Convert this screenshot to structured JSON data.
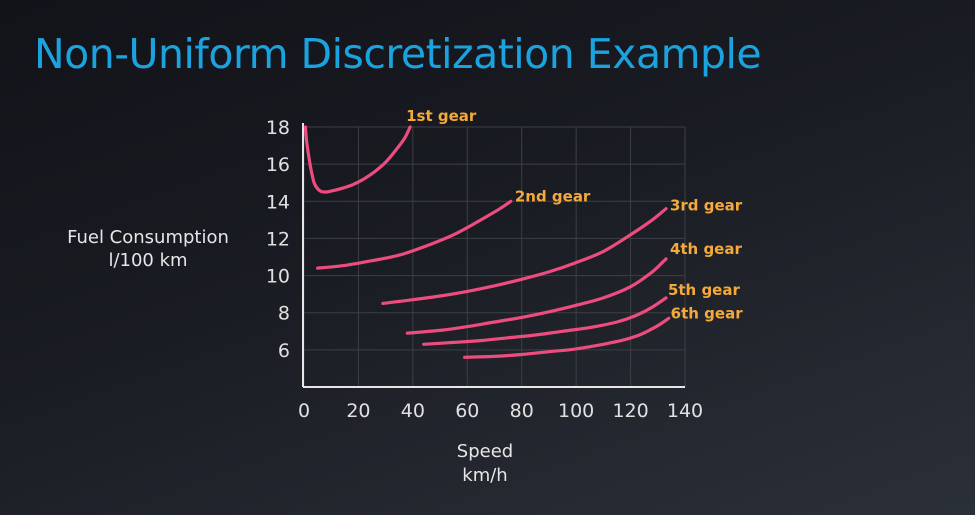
{
  "slide": {
    "title": "Non-Uniform Discretization Example"
  },
  "colors": {
    "title": "#1aa3df",
    "curve": "#ee4c7f",
    "gear_label": "#f4a93a",
    "grid": "#3c3f46",
    "axis": "#e6e6e6"
  },
  "chart_data": {
    "type": "line",
    "ylabel_lines": [
      "Fuel Consumption",
      "l/100 km"
    ],
    "xlabel_lines": [
      "Speed",
      "km/h"
    ],
    "xlim": [
      0,
      140
    ],
    "ylim": [
      4,
      18
    ],
    "x_ticks": [
      0,
      20,
      40,
      60,
      80,
      100,
      120,
      140
    ],
    "y_ticks": [
      6,
      8,
      10,
      12,
      14,
      16,
      18
    ],
    "grid": true,
    "series": [
      {
        "name": "1st gear",
        "x": [
          0.5,
          1,
          2,
          3,
          4,
          6,
          8,
          10,
          14,
          18,
          22,
          26,
          30,
          34,
          37,
          39
        ],
        "y": [
          18,
          17.2,
          16.2,
          15.4,
          14.9,
          14.55,
          14.5,
          14.55,
          14.7,
          14.9,
          15.2,
          15.6,
          16.1,
          16.8,
          17.4,
          18
        ]
      },
      {
        "name": "2nd gear",
        "x": [
          5,
          15,
          25,
          35,
          45,
          55,
          65,
          72,
          76
        ],
        "y": [
          10.4,
          10.55,
          10.8,
          11.1,
          11.6,
          12.2,
          13.0,
          13.6,
          14.0
        ]
      },
      {
        "name": "3rd gear",
        "x": [
          29,
          40,
          50,
          60,
          70,
          80,
          90,
          100,
          110,
          120,
          128,
          133
        ],
        "y": [
          8.5,
          8.7,
          8.9,
          9.15,
          9.45,
          9.8,
          10.2,
          10.7,
          11.3,
          12.2,
          13.0,
          13.6
        ]
      },
      {
        "name": "4th gear",
        "x": [
          38,
          50,
          60,
          70,
          80,
          90,
          100,
          110,
          120,
          128,
          133
        ],
        "y": [
          6.9,
          7.05,
          7.25,
          7.5,
          7.75,
          8.05,
          8.4,
          8.8,
          9.4,
          10.2,
          10.9
        ]
      },
      {
        "name": "5th gear",
        "x": [
          44,
          55,
          65,
          75,
          85,
          95,
          105,
          115,
          122,
          128,
          133
        ],
        "y": [
          6.3,
          6.4,
          6.5,
          6.65,
          6.8,
          7.0,
          7.2,
          7.5,
          7.85,
          8.3,
          8.8
        ]
      },
      {
        "name": "6th gear",
        "x": [
          59,
          70,
          80,
          90,
          100,
          110,
          118,
          124,
          130,
          134
        ],
        "y": [
          5.6,
          5.65,
          5.75,
          5.9,
          6.05,
          6.3,
          6.55,
          6.85,
          7.3,
          7.7
        ]
      }
    ]
  }
}
